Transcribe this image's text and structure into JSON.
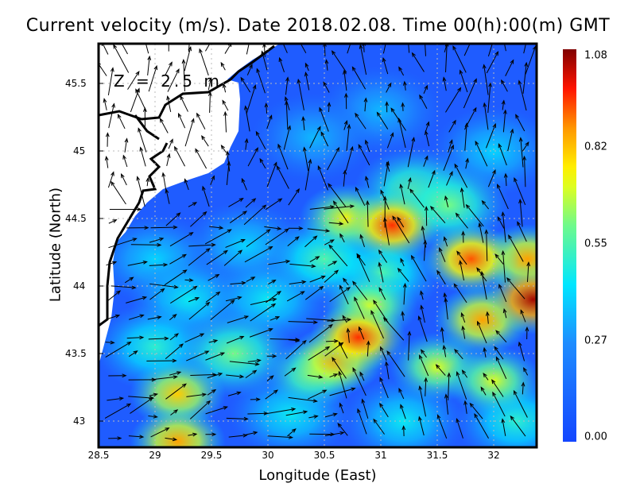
{
  "chart_data": {
    "type": "heatmap",
    "title": "Current velocity (m/s). Date 2018.02.08. Time 00(h):00(m) GMT",
    "xlabel": "Longitude (East)",
    "ylabel": "Latitude (North)",
    "annotation": "Z = 2.5 m",
    "xlim": [
      28.5,
      32.4
    ],
    "ylim": [
      42.8,
      45.8
    ],
    "xticks": [
      "28.5",
      "29",
      "29.5",
      "30",
      "30.5",
      "31",
      "31.5",
      "32"
    ],
    "yticks": [
      "45.5",
      "45",
      "44.5",
      "44",
      "43.5",
      "43"
    ],
    "grid": true,
    "colorbar": {
      "min": 0.0,
      "max": 1.08,
      "ticks": [
        "1.08",
        "0.82",
        "0.55",
        "0.27",
        "0.00"
      ],
      "colormap": "jet"
    },
    "speed_hotspots": [
      [
        31.1,
        44.45,
        0.95
      ],
      [
        30.8,
        43.62,
        0.95
      ],
      [
        30.6,
        43.45,
        0.85
      ],
      [
        31.8,
        44.2,
        0.92
      ],
      [
        32.35,
        43.9,
        1.05
      ],
      [
        31.9,
        43.75,
        0.85
      ],
      [
        30.9,
        43.85,
        0.7
      ],
      [
        30.7,
        44.5,
        0.75
      ],
      [
        29.2,
        43.2,
        0.8
      ],
      [
        29.2,
        42.85,
        0.85
      ],
      [
        31.5,
        43.4,
        0.7
      ],
      [
        32.0,
        43.3,
        0.7
      ],
      [
        30.4,
        43.35,
        0.65
      ],
      [
        29.7,
        43.5,
        0.6
      ],
      [
        31.0,
        44.1,
        0.55
      ],
      [
        32.3,
        44.2,
        0.85
      ],
      [
        31.3,
        44.7,
        0.6
      ],
      [
        30.5,
        44.2,
        0.55
      ],
      [
        29.3,
        43.9,
        0.45
      ],
      [
        31.6,
        44.6,
        0.6
      ],
      [
        30.0,
        43.9,
        0.45
      ],
      [
        29.0,
        43.55,
        0.5
      ],
      [
        32.2,
        43.0,
        0.5
      ],
      [
        31.2,
        43.0,
        0.45
      ],
      [
        30.2,
        43.05,
        0.45
      ],
      [
        29.8,
        44.3,
        0.4
      ],
      [
        31.0,
        45.3,
        0.35
      ],
      [
        32.0,
        45.0,
        0.4
      ],
      [
        30.4,
        45.1,
        0.35
      ],
      [
        29.0,
        44.2,
        0.4
      ]
    ]
  },
  "colors": {
    "sea_base": "#1f5cff",
    "land": "#ffffff",
    "grid": "#bbbbbb"
  }
}
